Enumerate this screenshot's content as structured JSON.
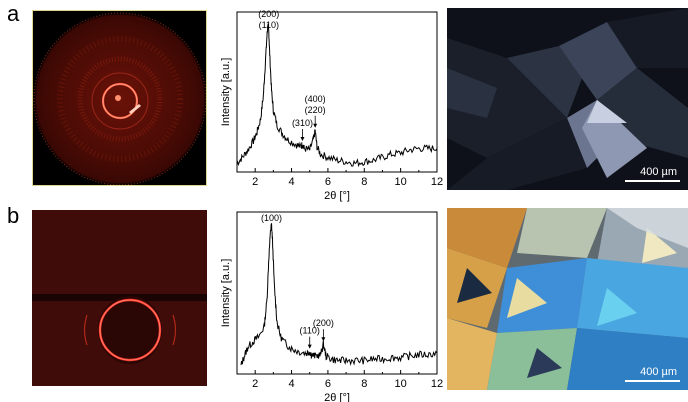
{
  "panels": [
    {
      "letter": "a",
      "chart_data": {
        "type": "line",
        "xlabel": "2θ [°]",
        "ylabel": "Intensity [a.u.]",
        "xlim": [
          1,
          12
        ],
        "ylim": [
          0,
          1
        ],
        "xticks": [
          2,
          4,
          6,
          8,
          10,
          12
        ],
        "x": [
          1.0,
          1.3,
          1.6,
          1.9,
          2.1,
          2.3,
          2.45,
          2.55,
          2.65,
          2.7,
          2.75,
          2.8,
          2.9,
          3.0,
          3.2,
          3.5,
          3.8,
          4.2,
          4.5,
          4.6,
          4.7,
          5.0,
          5.2,
          5.3,
          5.4,
          5.6,
          6.0,
          6.5,
          7.0,
          7.5,
          8.0,
          8.5,
          9.0,
          9.5,
          10.0,
          10.5,
          11.0,
          11.5,
          12.0
        ],
        "y": [
          0.06,
          0.1,
          0.15,
          0.21,
          0.27,
          0.36,
          0.52,
          0.72,
          0.93,
          1.0,
          0.95,
          0.8,
          0.55,
          0.42,
          0.32,
          0.26,
          0.22,
          0.19,
          0.17,
          0.19,
          0.16,
          0.15,
          0.22,
          0.28,
          0.17,
          0.12,
          0.1,
          0.08,
          0.07,
          0.06,
          0.07,
          0.08,
          0.1,
          0.12,
          0.13,
          0.15,
          0.16,
          0.16,
          0.16
        ],
        "annotations": [
          {
            "lines": [
              "(200)",
              "(110)"
            ],
            "x": 2.75
          },
          {
            "lines": [
              "(310)"
            ],
            "x": 4.6
          },
          {
            "lines": [
              "(400)",
              "(220)"
            ],
            "x": 5.3
          }
        ]
      },
      "scalebar": "400 µm"
    },
    {
      "letter": "b",
      "chart_data": {
        "type": "line",
        "xlabel": "2θ [°]",
        "ylabel": "Intensity [a.u.]",
        "xlim": [
          1,
          12
        ],
        "ylim": [
          0,
          1
        ],
        "xticks": [
          2,
          4,
          6,
          8,
          10,
          12
        ],
        "x": [
          1.2,
          1.4,
          1.6,
          1.9,
          2.2,
          2.5,
          2.65,
          2.75,
          2.85,
          2.9,
          2.95,
          3.05,
          3.2,
          3.4,
          3.7,
          4.0,
          4.4,
          4.8,
          5.0,
          5.1,
          5.3,
          5.6,
          5.75,
          5.9,
          6.2,
          6.6,
          7.0,
          7.5,
          8.0,
          8.5,
          9.0,
          9.5,
          10.0,
          10.5,
          11.0,
          11.5,
          12.0
        ],
        "y": [
          0.05,
          0.12,
          0.18,
          0.22,
          0.25,
          0.32,
          0.5,
          0.78,
          0.97,
          1.0,
          0.9,
          0.6,
          0.35,
          0.25,
          0.2,
          0.17,
          0.15,
          0.14,
          0.15,
          0.13,
          0.12,
          0.13,
          0.2,
          0.12,
          0.1,
          0.09,
          0.09,
          0.09,
          0.09,
          0.1,
          0.1,
          0.11,
          0.11,
          0.12,
          0.13,
          0.13,
          0.14
        ],
        "annotations": [
          {
            "lines": [
              "(100)"
            ],
            "x": 2.9
          },
          {
            "lines": [
              "(110)"
            ],
            "x": 5.0
          },
          {
            "lines": [
              "(200)"
            ],
            "x": 5.75
          }
        ]
      },
      "scalebar": "400 µm"
    }
  ]
}
